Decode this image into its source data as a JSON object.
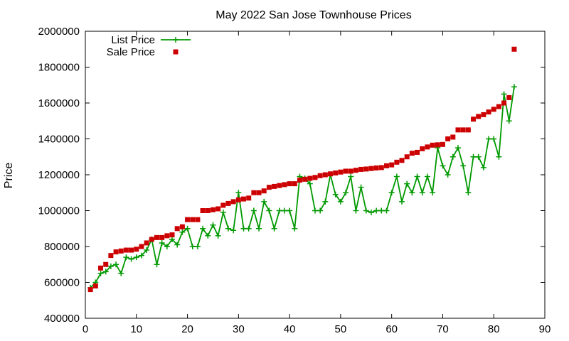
{
  "chart_data": {
    "type": "line",
    "title": "May 2022 San Jose Townhouse Prices",
    "xlabel": "",
    "ylabel": "Price",
    "xlim": [
      0,
      90
    ],
    "ylim": [
      400000,
      2000000
    ],
    "x_ticks": [
      "0",
      "10",
      "20",
      "30",
      "40",
      "50",
      "60",
      "70",
      "80",
      "90"
    ],
    "y_ticks": [
      "400000",
      "600000",
      "800000",
      "1000000",
      "1200000",
      "1400000",
      "1600000",
      "1800000",
      "2000000"
    ],
    "grid": false,
    "legend_position": "top-left",
    "x": [
      1,
      2,
      3,
      4,
      5,
      6,
      7,
      8,
      9,
      10,
      11,
      12,
      13,
      14,
      15,
      16,
      17,
      18,
      19,
      20,
      21,
      22,
      23,
      24,
      25,
      26,
      27,
      28,
      29,
      30,
      31,
      32,
      33,
      34,
      35,
      36,
      37,
      38,
      39,
      40,
      41,
      42,
      43,
      44,
      45,
      46,
      47,
      48,
      49,
      50,
      51,
      52,
      53,
      54,
      55,
      56,
      57,
      58,
      59,
      60,
      61,
      62,
      63,
      64,
      65,
      66,
      67,
      68,
      69,
      70,
      71,
      72,
      73,
      74,
      75,
      76,
      77,
      78,
      79,
      80,
      81,
      82,
      83,
      84
    ],
    "series": [
      {
        "name": "List Price",
        "color": "#009900",
        "marker": "plus",
        "values": [
          570000,
          600000,
          650000,
          660000,
          690000,
          700000,
          650000,
          740000,
          730000,
          740000,
          750000,
          780000,
          840000,
          700000,
          820000,
          800000,
          840000,
          810000,
          880000,
          900000,
          800000,
          800000,
          900000,
          860000,
          920000,
          860000,
          990000,
          900000,
          890000,
          1100000,
          900000,
          900000,
          1000000,
          900000,
          1050000,
          1000000,
          900000,
          1000000,
          1000000,
          1000000,
          900000,
          1190000,
          1180000,
          1150000,
          1000000,
          1000000,
          1050000,
          1200000,
          1090000,
          1050000,
          1100000,
          1190000,
          1000000,
          1130000,
          1000000,
          990000,
          1000000,
          1000000,
          1000000,
          1100000,
          1190000,
          1050000,
          1150000,
          1100000,
          1190000,
          1100000,
          1190000,
          1100000,
          1350000,
          1250000,
          1200000,
          1300000,
          1350000,
          1250000,
          1100000,
          1300000,
          1300000,
          1240000,
          1400000,
          1400000,
          1300000,
          1650000,
          1500000,
          1690000
        ]
      },
      {
        "name": "Sale Price",
        "color": "#cc0000",
        "marker": "square",
        "values": [
          560000,
          580000,
          680000,
          700000,
          750000,
          770000,
          775000,
          780000,
          780000,
          785000,
          800000,
          820000,
          840000,
          850000,
          850000,
          860000,
          865000,
          900000,
          910000,
          950000,
          950000,
          950000,
          1000000,
          1000000,
          1005000,
          1010000,
          1030000,
          1040000,
          1050000,
          1060000,
          1065000,
          1070000,
          1100000,
          1100000,
          1110000,
          1130000,
          1135000,
          1140000,
          1145000,
          1150000,
          1150000,
          1170000,
          1175000,
          1180000,
          1185000,
          1195000,
          1200000,
          1205000,
          1210000,
          1215000,
          1220000,
          1220000,
          1225000,
          1230000,
          1232000,
          1235000,
          1238000,
          1240000,
          1250000,
          1255000,
          1270000,
          1280000,
          1300000,
          1320000,
          1325000,
          1345000,
          1355000,
          1365000,
          1367000,
          1369000,
          1400000,
          1410000,
          1450000,
          1450000,
          1450000,
          1510000,
          1525000,
          1535000,
          1550000,
          1565000,
          1580000,
          1600000,
          1630000,
          1900000
        ]
      }
    ]
  }
}
